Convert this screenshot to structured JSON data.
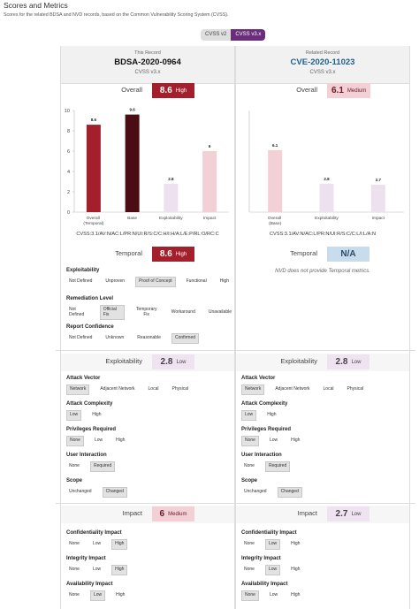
{
  "header": {
    "title": "Scores and Metrics",
    "subtitle": "Scores for the related BDSA and NVD records, based on the Common Vulnerability Scoring System (CVSS)."
  },
  "version_toggle": {
    "options": [
      "CVSS v2",
      "CVSS v3.x"
    ],
    "selected": 1,
    "selected_color": "#6b2d7b"
  },
  "records": [
    {
      "caption": "This Record",
      "id": "BDSA-2020-0964",
      "id_color": "#111111",
      "version": "CVSS v3.x",
      "overall": {
        "label": "Overall",
        "score": 8.6,
        "severity": "High",
        "color": "#a31f2c",
        "text_color": "#ffffff"
      },
      "vector": "CVSS:3.1/AV:N/AC:L/PR:N/UI:R/S:C/C:H/I:H/A:L/E:P/RL:O/RC:C",
      "temporal": {
        "label": "Temporal",
        "score": 8.6,
        "severity": "High",
        "color": "#a31f2c",
        "text_color": "#ffffff",
        "metrics": [
          {
            "name": "Exploitability",
            "options": [
              "Not Defined",
              "Unproven",
              "Proof of Concept",
              "Functional",
              "High"
            ],
            "selected": 2
          },
          {
            "name": "Remediation Level",
            "options": [
              "Not Defined",
              "Official Fix",
              "Temporary Fix",
              "Workaround",
              "Unavailable"
            ],
            "selected": 1
          },
          {
            "name": "Report Confidence",
            "options": [
              "Not Defined",
              "Unknown",
              "Reasonable",
              "Confirmed"
            ],
            "selected": 3
          }
        ]
      },
      "exploitability": {
        "label": "Exploitability",
        "score": 2.8,
        "severity": "Low",
        "color": "#efe3f1",
        "text_color": "#444444",
        "metrics": [
          {
            "name": "Attack Vector",
            "options": [
              "Network",
              "Adjacent Network",
              "Local",
              "Physical"
            ],
            "selected": 0
          },
          {
            "name": "Attack Complexity",
            "options": [
              "Low",
              "High"
            ],
            "selected": 0
          },
          {
            "name": "Privileges Required",
            "options": [
              "None",
              "Low",
              "High"
            ],
            "selected": 0
          },
          {
            "name": "User Interaction",
            "options": [
              "None",
              "Required"
            ],
            "selected": 1
          },
          {
            "name": "Scope",
            "options": [
              "Unchanged",
              "Changed"
            ],
            "selected": 1
          }
        ]
      },
      "impact": {
        "label": "Impact",
        "score": 6,
        "severity": "Medium",
        "color": "#f3cfd6",
        "text_color": "#6a1a24",
        "metrics": [
          {
            "name": "Confidentiality Impact",
            "options": [
              "None",
              "Low",
              "High"
            ],
            "selected": 2
          },
          {
            "name": "Integrity Impact",
            "options": [
              "None",
              "Low",
              "High"
            ],
            "selected": 2
          },
          {
            "name": "Availability Impact",
            "options": [
              "None",
              "Low",
              "High"
            ],
            "selected": 1
          }
        ]
      }
    },
    {
      "caption": "Related Record",
      "id": "CVE-2020-11023",
      "id_color": "#1d5f8c",
      "version": "CVSS v3.x",
      "overall": {
        "label": "Overall",
        "score": 6.1,
        "severity": "Medium",
        "color": "#f3cfd6",
        "text_color": "#6a1a24"
      },
      "vector": "CVSS:3.1/AV:N/AC:L/PR:N/UI:R/S:C/C:L/I:L/A:N",
      "temporal": {
        "label": "Temporal",
        "score": "N/A",
        "color": "#c9dcec",
        "text_color": "#2a4a6a",
        "note": "NVD does not provide Temporal metrics."
      },
      "exploitability": {
        "label": "Exploitability",
        "score": 2.8,
        "severity": "Low",
        "color": "#efe3f1",
        "text_color": "#444444",
        "metrics": [
          {
            "name": "Attack Vector",
            "options": [
              "Network",
              "Adjacent Network",
              "Local",
              "Physical"
            ],
            "selected": 0
          },
          {
            "name": "Attack Complexity",
            "options": [
              "Low",
              "High"
            ],
            "selected": 0
          },
          {
            "name": "Privileges Required",
            "options": [
              "None",
              "Low",
              "High"
            ],
            "selected": 0
          },
          {
            "name": "User Interaction",
            "options": [
              "None",
              "Required"
            ],
            "selected": 1
          },
          {
            "name": "Scope",
            "options": [
              "Unchanged",
              "Changed"
            ],
            "selected": 1
          }
        ]
      },
      "impact": {
        "label": "Impact",
        "score": 2.7,
        "severity": "Low",
        "color": "#efe3f1",
        "text_color": "#444444",
        "metrics": [
          {
            "name": "Confidentiality Impact",
            "options": [
              "None",
              "Low",
              "High"
            ],
            "selected": 1
          },
          {
            "name": "Integrity Impact",
            "options": [
              "None",
              "Low",
              "High"
            ],
            "selected": 1
          },
          {
            "name": "Availability Impact",
            "options": [
              "None",
              "Low",
              "High"
            ],
            "selected": 0
          }
        ]
      }
    }
  ],
  "chart_data": [
    {
      "type": "bar",
      "categories": [
        "Overall (Temporal)",
        "Base",
        "Exploitability",
        "Impact"
      ],
      "values": [
        8.6,
        9.6,
        2.8,
        6
      ],
      "colors": [
        "#a31f2c",
        "#4a0d14",
        "#ede1ef",
        "#f3cfd6"
      ],
      "ylim": [
        0,
        10
      ],
      "yticks": [
        0,
        2,
        4,
        6,
        8,
        10
      ]
    },
    {
      "type": "bar",
      "categories": [
        "Overall (Base)",
        "Exploitability",
        "Impact"
      ],
      "values": [
        6.1,
        2.8,
        2.7
      ],
      "colors": [
        "#f3cfd6",
        "#ede1ef",
        "#ede1ef"
      ],
      "ylim": [
        0,
        10
      ]
    }
  ]
}
